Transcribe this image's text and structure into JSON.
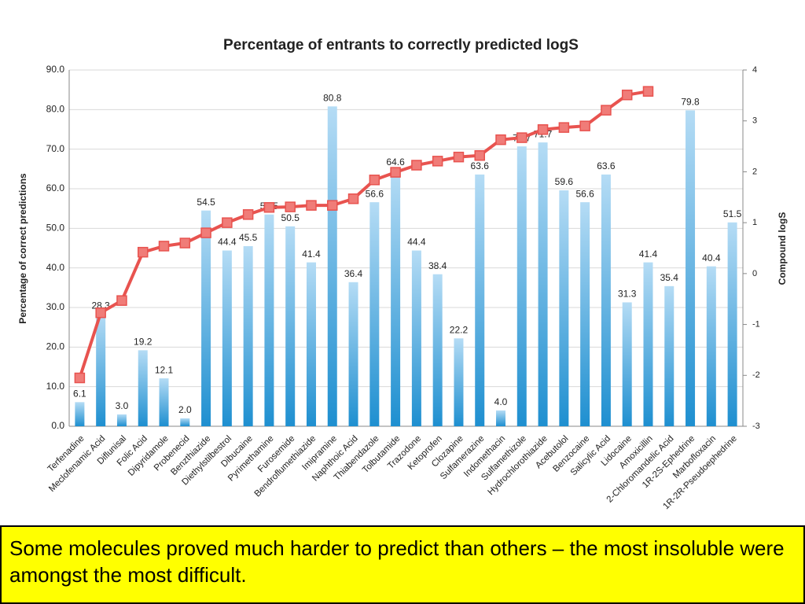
{
  "chart_data": {
    "type": "bar",
    "title": "Percentage of entrants to correctly predicted logS",
    "y_label": "Percentage of correct predictions",
    "y2_label": "Compound logS",
    "categories": [
      "Terfenadine",
      "Meclofenamic Acid",
      "Diflunisal",
      "Folic Acid",
      "Dipyridamole",
      "Probenecid",
      "Benzthiazide",
      "Diethylstilbestrol",
      "Dibucaine",
      "Pyrimethamine",
      "Furosemide",
      "Bendroflumethiazide",
      "Imipramine",
      "Naphthoic Acid",
      "Thiabendazole",
      "Tolbutamide",
      "Trazodone",
      "Ketoprofen",
      "Clozapine",
      "Sulfamerazine",
      "Indomethacin",
      "Sulfamethizole",
      "Hydrochlorothiazide",
      "Acebutolol",
      "Benzocaine",
      "Salicylic Acid",
      "Lidocaine",
      "Amoxicillin",
      "2-Chloromandelic Acid",
      "1R-2S-Ephedrine",
      "Marbofloxacin",
      "1R-2R-Pseudoephedrine"
    ],
    "series": [
      {
        "type": "bar",
        "color": "#5aaee0",
        "values": [
          6.1,
          28.3,
          3.0,
          19.2,
          12.1,
          2.0,
          54.5,
          44.4,
          45.5,
          53.5,
          50.5,
          41.4,
          80.8,
          36.4,
          56.6,
          64.6,
          44.4,
          38.4,
          22.2,
          63.6,
          4.0,
          70.7,
          71.7,
          59.6,
          56.6,
          63.6,
          31.3,
          41.4,
          35.4,
          79.8,
          40.4,
          51.5
        ],
        "value_labels": [
          "6.1",
          "28.3",
          "3.0",
          "19.2",
          "12.1",
          "2.0",
          "54.5",
          "44.4",
          "45.5",
          "53.5",
          "50.5",
          "41.4",
          "80.8",
          "36.4",
          "56.6",
          "64.6",
          "44.4",
          "38.4",
          "22.2",
          "63.6",
          "4.0",
          "70.7",
          "71.7",
          "59.6",
          "56.6",
          "63.6",
          "31.3",
          "41.4",
          "35.4",
          "79.8",
          "40.4",
          "51.5"
        ]
      },
      {
        "type": "line",
        "axis": "y2",
        "color": "#e8534f",
        "values": [
          -2.05,
          -0.77,
          -0.53,
          0.42,
          0.54,
          0.6,
          0.8,
          1.0,
          1.16,
          1.3,
          1.31,
          1.34,
          1.34,
          1.47,
          1.84,
          1.99,
          2.13,
          2.21,
          2.29,
          2.32,
          2.63,
          2.67,
          2.83,
          2.87,
          2.9,
          3.21,
          3.51,
          3.58,
          null,
          null,
          null,
          null
        ]
      }
    ],
    "ylim": [
      0,
      90
    ],
    "yticks": [
      {
        "value": 0,
        "label": "0.0"
      },
      {
        "value": 10,
        "label": "10.0"
      },
      {
        "value": 20,
        "label": "20.0"
      },
      {
        "value": 30,
        "label": "30.0"
      },
      {
        "value": 40,
        "label": "40.0"
      },
      {
        "value": 50,
        "label": "50.0"
      },
      {
        "value": 60,
        "label": "60.0"
      },
      {
        "value": 70,
        "label": "70.0"
      },
      {
        "value": 80,
        "label": "80.0"
      },
      {
        "value": 90,
        "label": "90.0"
      }
    ],
    "y2lim": [
      -3,
      4
    ],
    "y2ticks": [
      -3,
      -2,
      -1,
      0,
      1,
      2,
      3,
      4
    ],
    "grid": true
  },
  "caption": "Some molecules proved much harder to predict than others – the most insoluble were amongst the most difficult."
}
